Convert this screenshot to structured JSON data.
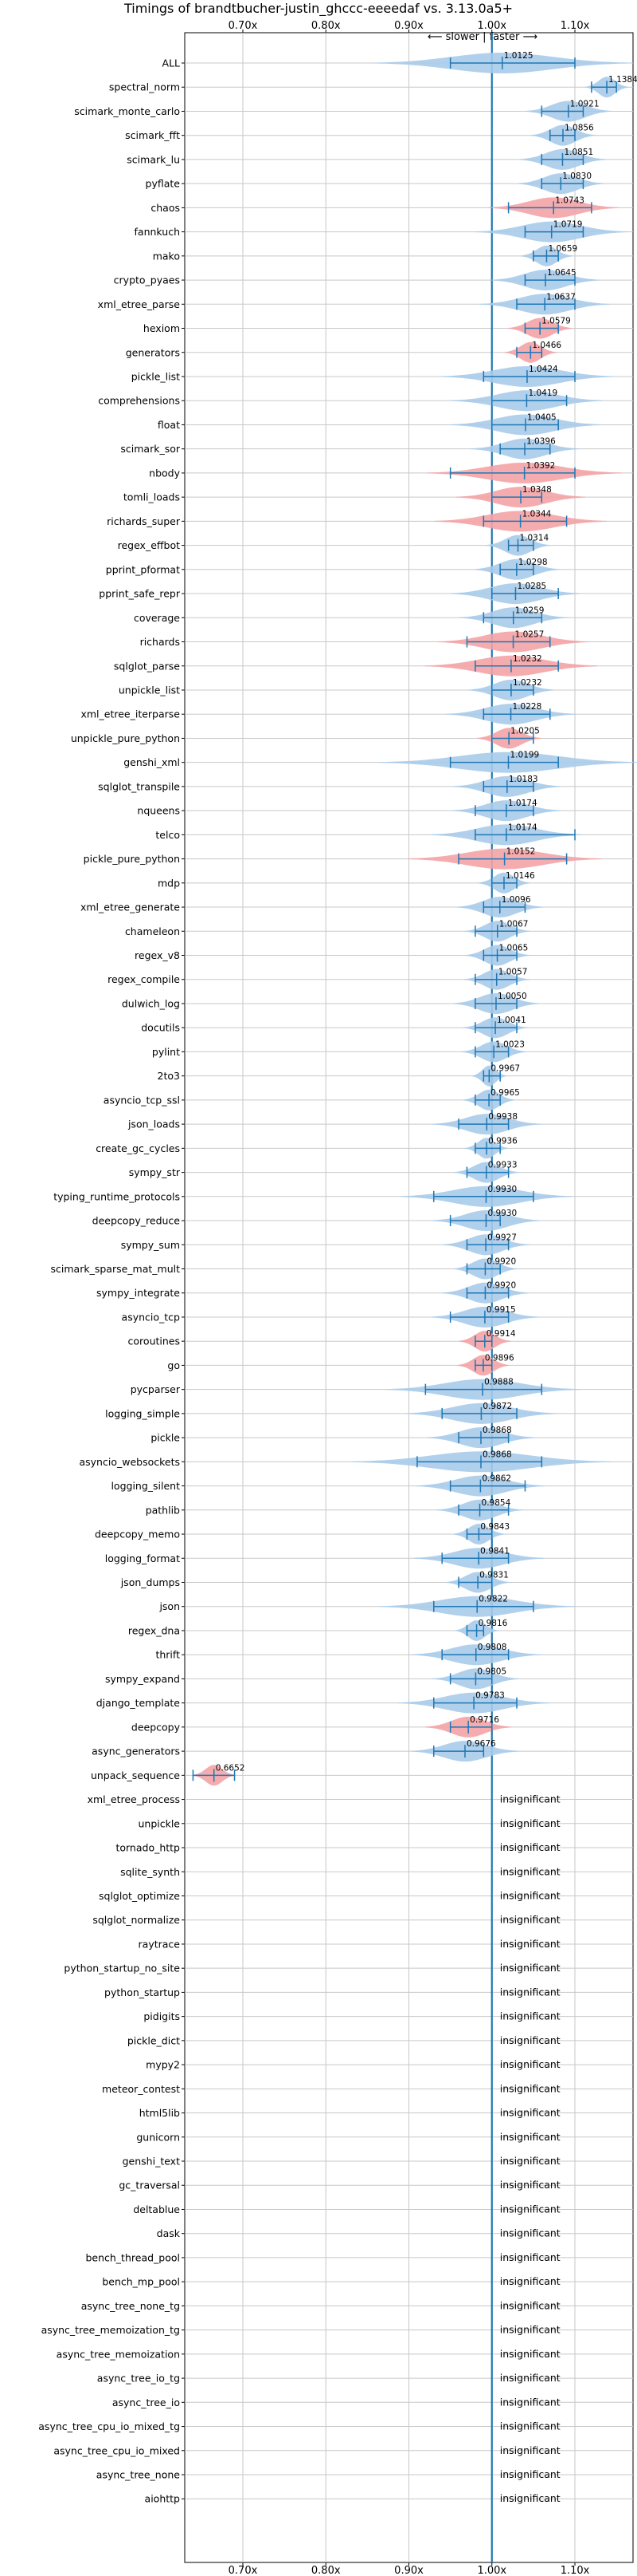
{
  "chart_data": {
    "type": "violin",
    "title": "Timings of brandtbucher-justin_ghccc-eeeedaf vs. 3.13.0a5+",
    "direction_note": "⟵ slower | faster ⟶",
    "xlim": [
      0.63,
      1.17
    ],
    "x_ticks": [
      0.7,
      0.8,
      0.9,
      1.0,
      1.1
    ],
    "x_tick_labels": [
      "0.70x",
      "0.80x",
      "0.90x",
      "1.00x",
      "1.10x"
    ],
    "grid": true,
    "reference_line": 1.0,
    "insignificant_label": "insignificant",
    "colors": {
      "faster": "#a9cbea",
      "slower": "#f4a3a6",
      "line": "#1f77b4",
      "grid": "#c8c8c8"
    },
    "benchmarks": [
      {
        "name": "ALL",
        "value": 1.0125,
        "label": "1.0125",
        "min": 0.95,
        "max": 1.1,
        "spread": 0.06,
        "highlight": false
      },
      {
        "name": "spectral_norm",
        "value": 1.1384,
        "label": "1.1384",
        "min": 1.12,
        "max": 1.15,
        "spread": 0.01,
        "highlight": false
      },
      {
        "name": "scimark_monte_carlo",
        "value": 1.0921,
        "label": "1.0921",
        "min": 1.06,
        "max": 1.11,
        "spread": 0.02,
        "highlight": false
      },
      {
        "name": "scimark_fft",
        "value": 1.0856,
        "label": "1.0856",
        "min": 1.07,
        "max": 1.1,
        "spread": 0.015,
        "highlight": false
      },
      {
        "name": "scimark_lu",
        "value": 1.0851,
        "label": "1.0851",
        "min": 1.06,
        "max": 1.11,
        "spread": 0.02,
        "highlight": false
      },
      {
        "name": "pyflate",
        "value": 1.083,
        "label": "1.0830",
        "min": 1.06,
        "max": 1.11,
        "spread": 0.02,
        "highlight": false
      },
      {
        "name": "chaos",
        "value": 1.0743,
        "label": "1.0743",
        "min": 1.02,
        "max": 1.12,
        "spread": 0.03,
        "highlight": true
      },
      {
        "name": "fannkuch",
        "value": 1.0719,
        "label": "1.0719",
        "min": 1.04,
        "max": 1.11,
        "spread": 0.035,
        "highlight": false
      },
      {
        "name": "mako",
        "value": 1.0659,
        "label": "1.0659",
        "min": 1.05,
        "max": 1.08,
        "spread": 0.012,
        "highlight": false
      },
      {
        "name": "crypto_pyaes",
        "value": 1.0645,
        "label": "1.0645",
        "min": 1.04,
        "max": 1.1,
        "spread": 0.025,
        "highlight": false
      },
      {
        "name": "xml_etree_parse",
        "value": 1.0637,
        "label": "1.0637",
        "min": 1.03,
        "max": 1.1,
        "spread": 0.03,
        "highlight": false
      },
      {
        "name": "hexiom",
        "value": 1.0579,
        "label": "1.0579",
        "min": 1.04,
        "max": 1.08,
        "spread": 0.015,
        "highlight": true
      },
      {
        "name": "generators",
        "value": 1.0466,
        "label": "1.0466",
        "min": 1.03,
        "max": 1.06,
        "spread": 0.012,
        "highlight": true
      },
      {
        "name": "pickle_list",
        "value": 1.0424,
        "label": "1.0424",
        "min": 0.99,
        "max": 1.1,
        "spread": 0.04,
        "highlight": false
      },
      {
        "name": "comprehensions",
        "value": 1.0419,
        "label": "1.0419",
        "min": 1.0,
        "max": 1.09,
        "spread": 0.035,
        "highlight": false
      },
      {
        "name": "float",
        "value": 1.0405,
        "label": "1.0405",
        "min": 1.0,
        "max": 1.08,
        "spread": 0.035,
        "highlight": false
      },
      {
        "name": "scimark_sor",
        "value": 1.0396,
        "label": "1.0396",
        "min": 1.01,
        "max": 1.07,
        "spread": 0.025,
        "highlight": false
      },
      {
        "name": "nbody",
        "value": 1.0392,
        "label": "1.0392",
        "min": 0.95,
        "max": 1.1,
        "spread": 0.045,
        "highlight": true
      },
      {
        "name": "tomli_loads",
        "value": 1.0348,
        "label": "1.0348",
        "min": 1.0,
        "max": 1.06,
        "spread": 0.03,
        "highlight": true
      },
      {
        "name": "richards_super",
        "value": 1.0344,
        "label": "1.0344",
        "min": 0.99,
        "max": 1.09,
        "spread": 0.04,
        "highlight": true
      },
      {
        "name": "regex_effbot",
        "value": 1.0314,
        "label": "1.0314",
        "min": 1.02,
        "max": 1.05,
        "spread": 0.015,
        "highlight": false
      },
      {
        "name": "pprint_pformat",
        "value": 1.0298,
        "label": "1.0298",
        "min": 1.01,
        "max": 1.05,
        "spread": 0.02,
        "highlight": false
      },
      {
        "name": "pprint_safe_repr",
        "value": 1.0285,
        "label": "1.0285",
        "min": 1.0,
        "max": 1.08,
        "spread": 0.03,
        "highlight": false
      },
      {
        "name": "coverage",
        "value": 1.0259,
        "label": "1.0259",
        "min": 0.99,
        "max": 1.06,
        "spread": 0.025,
        "highlight": false
      },
      {
        "name": "richards",
        "value": 1.0257,
        "label": "1.0257",
        "min": 0.97,
        "max": 1.07,
        "spread": 0.035,
        "highlight": true
      },
      {
        "name": "sqlglot_parse",
        "value": 1.0232,
        "label": "1.0232",
        "min": 0.98,
        "max": 1.08,
        "spread": 0.04,
        "highlight": true
      },
      {
        "name": "unpickle_list",
        "value": 1.0232,
        "label": "1.0232",
        "min": 1.0,
        "max": 1.05,
        "spread": 0.02,
        "highlight": false
      },
      {
        "name": "xml_etree_iterparse",
        "value": 1.0228,
        "label": "1.0228",
        "min": 0.99,
        "max": 1.07,
        "spread": 0.03,
        "highlight": false
      },
      {
        "name": "unpickle_pure_python",
        "value": 1.0205,
        "label": "1.0205",
        "min": 1.0,
        "max": 1.05,
        "spread": 0.015,
        "highlight": true
      },
      {
        "name": "genshi_xml",
        "value": 1.0199,
        "label": "1.0199",
        "min": 0.95,
        "max": 1.08,
        "spread": 0.06,
        "highlight": false
      },
      {
        "name": "sqlglot_transpile",
        "value": 1.0183,
        "label": "1.0183",
        "min": 0.99,
        "max": 1.05,
        "spread": 0.025,
        "highlight": false
      },
      {
        "name": "nqueens",
        "value": 1.0174,
        "label": "1.0174",
        "min": 0.98,
        "max": 1.05,
        "spread": 0.025,
        "highlight": false
      },
      {
        "name": "telco",
        "value": 1.0174,
        "label": "1.0174",
        "min": 0.98,
        "max": 1.1,
        "spread": 0.035,
        "highlight": false
      },
      {
        "name": "pickle_pure_python",
        "value": 1.0152,
        "label": "1.0152",
        "min": 0.96,
        "max": 1.09,
        "spread": 0.045,
        "highlight": true
      },
      {
        "name": "mdp",
        "value": 1.0146,
        "label": "1.0146",
        "min": 1.0,
        "max": 1.03,
        "spread": 0.012,
        "highlight": false
      },
      {
        "name": "xml_etree_generate",
        "value": 1.0096,
        "label": "1.0096",
        "min": 0.99,
        "max": 1.04,
        "spread": 0.02,
        "highlight": false
      },
      {
        "name": "chameleon",
        "value": 1.0067,
        "label": "1.0067",
        "min": 0.98,
        "max": 1.03,
        "spread": 0.015,
        "highlight": false
      },
      {
        "name": "regex_v8",
        "value": 1.0065,
        "label": "1.0065",
        "min": 0.99,
        "max": 1.03,
        "spread": 0.015,
        "highlight": false
      },
      {
        "name": "regex_compile",
        "value": 1.0057,
        "label": "1.0057",
        "min": 0.98,
        "max": 1.03,
        "spread": 0.015,
        "highlight": false
      },
      {
        "name": "dulwich_log",
        "value": 1.005,
        "label": "1.0050",
        "min": 0.98,
        "max": 1.03,
        "spread": 0.02,
        "highlight": false
      },
      {
        "name": "docutils",
        "value": 1.0041,
        "label": "1.0041",
        "min": 0.98,
        "max": 1.03,
        "spread": 0.015,
        "highlight": false
      },
      {
        "name": "pylint",
        "value": 1.0023,
        "label": "1.0023",
        "min": 0.98,
        "max": 1.02,
        "spread": 0.015,
        "highlight": false
      },
      {
        "name": "2to3",
        "value": 0.9967,
        "label": "0.9967",
        "min": 0.99,
        "max": 1.01,
        "spread": 0.008,
        "highlight": false
      },
      {
        "name": "asyncio_tcp_ssl",
        "value": 0.9965,
        "label": "0.9965",
        "min": 0.98,
        "max": 1.01,
        "spread": 0.012,
        "highlight": false
      },
      {
        "name": "json_loads",
        "value": 0.9938,
        "label": "0.9938",
        "min": 0.96,
        "max": 1.02,
        "spread": 0.025,
        "highlight": false
      },
      {
        "name": "create_gc_cycles",
        "value": 0.9936,
        "label": "0.9936",
        "min": 0.98,
        "max": 1.01,
        "spread": 0.01,
        "highlight": false
      },
      {
        "name": "sympy_str",
        "value": 0.9933,
        "label": "0.9933",
        "min": 0.97,
        "max": 1.02,
        "spread": 0.015,
        "highlight": false
      },
      {
        "name": "typing_runtime_protocols",
        "value": 0.993,
        "label": "0.9930",
        "min": 0.93,
        "max": 1.05,
        "spread": 0.04,
        "highlight": false
      },
      {
        "name": "deepcopy_reduce",
        "value": 0.993,
        "label": "0.9930",
        "min": 0.95,
        "max": 1.01,
        "spread": 0.025,
        "highlight": false
      },
      {
        "name": "sympy_sum",
        "value": 0.9927,
        "label": "0.9927",
        "min": 0.97,
        "max": 1.02,
        "spread": 0.02,
        "highlight": false
      },
      {
        "name": "scimark_sparse_mat_mult",
        "value": 0.992,
        "label": "0.9920",
        "min": 0.97,
        "max": 1.01,
        "spread": 0.015,
        "highlight": false
      },
      {
        "name": "sympy_integrate",
        "value": 0.992,
        "label": "0.9920",
        "min": 0.97,
        "max": 1.02,
        "spread": 0.02,
        "highlight": false
      },
      {
        "name": "asyncio_tcp",
        "value": 0.9915,
        "label": "0.9915",
        "min": 0.95,
        "max": 1.02,
        "spread": 0.025,
        "highlight": false
      },
      {
        "name": "coroutines",
        "value": 0.9914,
        "label": "0.9914",
        "min": 0.98,
        "max": 1.0,
        "spread": 0.012,
        "highlight": true
      },
      {
        "name": "go",
        "value": 0.9896,
        "label": "0.9896",
        "min": 0.98,
        "max": 1.0,
        "spread": 0.012,
        "highlight": true
      },
      {
        "name": "pycparser",
        "value": 0.9888,
        "label": "0.9888",
        "min": 0.92,
        "max": 1.06,
        "spread": 0.045,
        "highlight": false
      },
      {
        "name": "logging_simple",
        "value": 0.9872,
        "label": "0.9872",
        "min": 0.94,
        "max": 1.03,
        "spread": 0.035,
        "highlight": false
      },
      {
        "name": "pickle",
        "value": 0.9868,
        "label": "0.9868",
        "min": 0.96,
        "max": 1.02,
        "spread": 0.025,
        "highlight": false
      },
      {
        "name": "asyncio_websockets",
        "value": 0.9868,
        "label": "0.9868",
        "min": 0.91,
        "max": 1.06,
        "spread": 0.06,
        "highlight": false
      },
      {
        "name": "logging_silent",
        "value": 0.9862,
        "label": "0.9862",
        "min": 0.95,
        "max": 1.04,
        "spread": 0.03,
        "highlight": false
      },
      {
        "name": "pathlib",
        "value": 0.9854,
        "label": "0.9854",
        "min": 0.96,
        "max": 1.02,
        "spread": 0.02,
        "highlight": false
      },
      {
        "name": "deepcopy_memo",
        "value": 0.9843,
        "label": "0.9843",
        "min": 0.97,
        "max": 1.0,
        "spread": 0.012,
        "highlight": false
      },
      {
        "name": "logging_format",
        "value": 0.9841,
        "label": "0.9841",
        "min": 0.94,
        "max": 1.02,
        "spread": 0.03,
        "highlight": false
      },
      {
        "name": "json_dumps",
        "value": 0.9831,
        "label": "0.9831",
        "min": 0.96,
        "max": 1.0,
        "spread": 0.015,
        "highlight": false
      },
      {
        "name": "json",
        "value": 0.9822,
        "label": "0.9822",
        "min": 0.93,
        "max": 1.05,
        "spread": 0.045,
        "highlight": false
      },
      {
        "name": "regex_dna",
        "value": 0.9816,
        "label": "0.9816",
        "min": 0.97,
        "max": 0.99,
        "spread": 0.01,
        "highlight": false
      },
      {
        "name": "thrift",
        "value": 0.9808,
        "label": "0.9808",
        "min": 0.94,
        "max": 1.02,
        "spread": 0.03,
        "highlight": false
      },
      {
        "name": "sympy_expand",
        "value": 0.9805,
        "label": "0.9805",
        "min": 0.95,
        "max": 1.0,
        "spread": 0.02,
        "highlight": false
      },
      {
        "name": "django_template",
        "value": 0.9783,
        "label": "0.9783",
        "min": 0.93,
        "max": 1.03,
        "spread": 0.035,
        "highlight": false
      },
      {
        "name": "deepcopy",
        "value": 0.9716,
        "label": "0.9716",
        "min": 0.95,
        "max": 1.0,
        "spread": 0.02,
        "highlight": true
      },
      {
        "name": "async_generators",
        "value": 0.9676,
        "label": "0.9676",
        "min": 0.93,
        "max": 0.99,
        "spread": 0.025,
        "highlight": false
      },
      {
        "name": "unpack_sequence",
        "value": 0.6652,
        "label": "0.6652",
        "min": 0.64,
        "max": 0.69,
        "spread": 0.01,
        "highlight": true
      },
      {
        "name": "xml_etree_process",
        "value": null,
        "label": "insignificant"
      },
      {
        "name": "unpickle",
        "value": null,
        "label": "insignificant"
      },
      {
        "name": "tornado_http",
        "value": null,
        "label": "insignificant"
      },
      {
        "name": "sqlite_synth",
        "value": null,
        "label": "insignificant"
      },
      {
        "name": "sqlglot_optimize",
        "value": null,
        "label": "insignificant"
      },
      {
        "name": "sqlglot_normalize",
        "value": null,
        "label": "insignificant"
      },
      {
        "name": "raytrace",
        "value": null,
        "label": "insignificant"
      },
      {
        "name": "python_startup_no_site",
        "value": null,
        "label": "insignificant"
      },
      {
        "name": "python_startup",
        "value": null,
        "label": "insignificant"
      },
      {
        "name": "pidigits",
        "value": null,
        "label": "insignificant"
      },
      {
        "name": "pickle_dict",
        "value": null,
        "label": "insignificant"
      },
      {
        "name": "mypy2",
        "value": null,
        "label": "insignificant"
      },
      {
        "name": "meteor_contest",
        "value": null,
        "label": "insignificant"
      },
      {
        "name": "html5lib",
        "value": null,
        "label": "insignificant"
      },
      {
        "name": "gunicorn",
        "value": null,
        "label": "insignificant"
      },
      {
        "name": "genshi_text",
        "value": null,
        "label": "insignificant"
      },
      {
        "name": "gc_traversal",
        "value": null,
        "label": "insignificant"
      },
      {
        "name": "deltablue",
        "value": null,
        "label": "insignificant"
      },
      {
        "name": "dask",
        "value": null,
        "label": "insignificant"
      },
      {
        "name": "bench_thread_pool",
        "value": null,
        "label": "insignificant"
      },
      {
        "name": "bench_mp_pool",
        "value": null,
        "label": "insignificant"
      },
      {
        "name": "async_tree_none_tg",
        "value": null,
        "label": "insignificant"
      },
      {
        "name": "async_tree_memoization_tg",
        "value": null,
        "label": "insignificant"
      },
      {
        "name": "async_tree_memoization",
        "value": null,
        "label": "insignificant"
      },
      {
        "name": "async_tree_io_tg",
        "value": null,
        "label": "insignificant"
      },
      {
        "name": "async_tree_io",
        "value": null,
        "label": "insignificant"
      },
      {
        "name": "async_tree_cpu_io_mixed_tg",
        "value": null,
        "label": "insignificant"
      },
      {
        "name": "async_tree_cpu_io_mixed",
        "value": null,
        "label": "insignificant"
      },
      {
        "name": "async_tree_none",
        "value": null,
        "label": "insignificant"
      },
      {
        "name": "aiohttp",
        "value": null,
        "label": "insignificant"
      }
    ]
  }
}
